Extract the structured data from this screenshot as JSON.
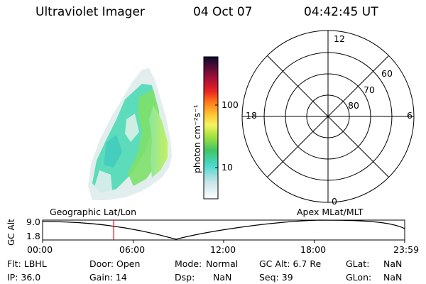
{
  "header": {
    "instrument": "Ultraviolet Imager",
    "date": "04 Oct 07",
    "time": "04:42:45 UT"
  },
  "colorbar": {
    "unit_label": "photon cm⁻²s⁻¹",
    "ticks": [
      {
        "label": "100",
        "value": 100
      },
      {
        "label": "10",
        "value": 10
      }
    ]
  },
  "polar_plot": {
    "mlt_labels": [
      {
        "label": "12",
        "angle_deg": 90
      },
      {
        "label": "18",
        "angle_deg": 180
      },
      {
        "label": "6",
        "angle_deg": 0
      },
      {
        "label": "0",
        "angle_deg": 270
      }
    ],
    "lat_labels": [
      {
        "label": "60",
        "lat": 60
      },
      {
        "label": "70",
        "lat": 70
      },
      {
        "label": "80",
        "lat": 80
      }
    ]
  },
  "timeline": {
    "left_title": "Geographic Lat/Lon",
    "right_title": "Apex  MLat/MLT",
    "axis_label": "GC Alt",
    "y_labels": [
      "9.0",
      "1.8"
    ],
    "x_ticks": [
      "00:00",
      "06:00",
      "12:00",
      "18:00",
      "23:59"
    ],
    "current_time_hours": 4.7125,
    "marker_color": "#ff0000"
  },
  "info": {
    "flt": "Flt: LBHL",
    "ip": "IP: 36.0",
    "door": "Door: Open",
    "gain": "Gain: 14",
    "mode_label": "Mode:",
    "mode_value": "Normal",
    "dsp_label": "Dsp:",
    "dsp_value": "NaN",
    "gcalt": "GC Alt: 6.7 Re",
    "seq": "Seq: 39",
    "glat_label": "GLat:",
    "glat_value": "NaN",
    "glon_label": "GLon:",
    "glon_value": "NaN"
  }
}
